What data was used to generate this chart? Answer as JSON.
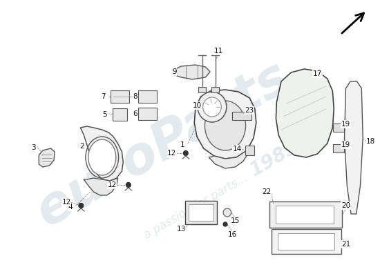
{
  "bg_color": "#ffffff",
  "watermark_text1": "euroParts",
  "watermark_text2": "a passion for parts...",
  "watermark_number": "1985",
  "watermark_color": "#c8d4dc",
  "fig_w": 5.5,
  "fig_h": 4.0,
  "dpi": 100
}
